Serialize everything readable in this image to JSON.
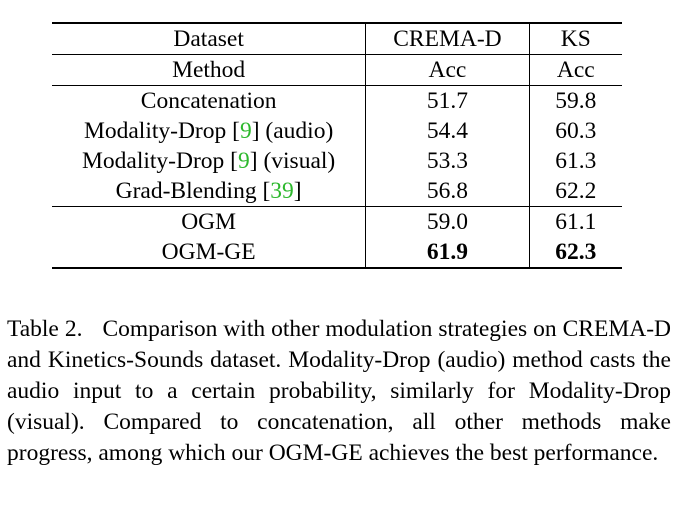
{
  "table": {
    "header_row1": [
      "Dataset",
      "CREMA-D",
      "KS"
    ],
    "header_row2": [
      "Method",
      "Acc",
      "Acc"
    ],
    "rows": [
      {
        "method": "Concatenation",
        "method_suffix": "",
        "cite": "",
        "suffix": "",
        "crema": "51.7",
        "ks": "59.8"
      },
      {
        "method": "Modality-Drop [",
        "cite": "9",
        "suffix": "] (audio)",
        "crema": "54.4",
        "ks": "60.3"
      },
      {
        "method": "Modality-Drop [",
        "cite": "9",
        "suffix": "] (visual)",
        "crema": "53.3",
        "ks": "61.3"
      },
      {
        "method": "Grad-Blending [",
        "cite": "39",
        "suffix": "]",
        "crema": "56.8",
        "ks": "62.2"
      },
      {
        "method": "OGM",
        "cite": "",
        "suffix": "",
        "crema": "59.0",
        "ks": "61.1"
      },
      {
        "method": "OGM-GE",
        "cite": "",
        "suffix": "",
        "crema": "61.9",
        "ks": "62.3"
      }
    ],
    "cite_color": "#2db82d"
  },
  "caption": {
    "label": "Table 2.",
    "text": "Comparison with other modulation strategies on CREMA-D and Kinetics-Sounds dataset. Modality-Drop (audio) method casts the audio input to a certain probability, similarly for Modality-Drop (visual). Compared to concatenation, all other methods make progress, among which our OGM-GE achieves the best performance."
  }
}
